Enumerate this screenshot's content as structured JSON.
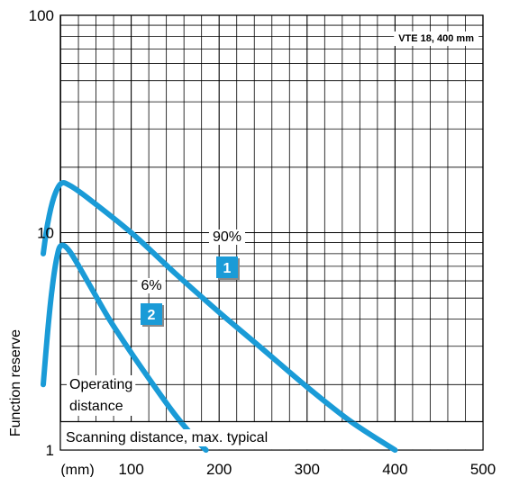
{
  "chart_data": {
    "type": "line",
    "title": "VTE 18, 400 mm",
    "ylabel": "Function reserve",
    "xlabel": "",
    "x_unit_label": "(mm)",
    "xlim": [
      0,
      500
    ],
    "ylim": [
      1,
      100
    ],
    "yscale": "log",
    "grid": true,
    "x_ticks": [
      100,
      200,
      300,
      400,
      500
    ],
    "x_tick_labels": [
      "100",
      "200",
      "300",
      "400",
      "500"
    ],
    "y_ticks": [
      1,
      10,
      100
    ],
    "y_tick_labels": [
      "1",
      "10",
      "100"
    ],
    "series_color": "#1a9bd7",
    "series": [
      {
        "name": "90%",
        "marker": "1",
        "points": [
          [
            0,
            8
          ],
          [
            5,
            11
          ],
          [
            12,
            14.5
          ],
          [
            20,
            16.8
          ],
          [
            30,
            16.5
          ],
          [
            50,
            14.5
          ],
          [
            100,
            10
          ],
          [
            150,
            6.5
          ],
          [
            200,
            4.3
          ],
          [
            250,
            2.9
          ],
          [
            300,
            1.95
          ],
          [
            350,
            1.35
          ],
          [
            400,
            1.0
          ]
        ]
      },
      {
        "name": "6%",
        "marker": "2",
        "points": [
          [
            0,
            2.0
          ],
          [
            5,
            3.5
          ],
          [
            10,
            5.5
          ],
          [
            15,
            7.5
          ],
          [
            20,
            8.7
          ],
          [
            30,
            8.2
          ],
          [
            50,
            6.0
          ],
          [
            75,
            4.0
          ],
          [
            100,
            2.8
          ],
          [
            125,
            2.0
          ],
          [
            150,
            1.45
          ],
          [
            175,
            1.1
          ],
          [
            185,
            1.0
          ]
        ]
      }
    ],
    "annotations": {
      "operating_distance": "Operating distance",
      "scanning_distance": "Scanning distance, max. typical"
    }
  }
}
